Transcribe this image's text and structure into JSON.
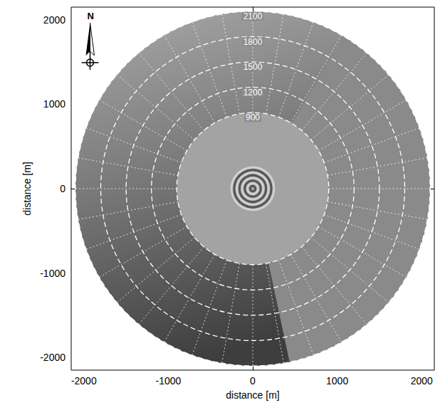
{
  "chart_data": {
    "type": "polar_image",
    "xlabel": "distance [m]",
    "ylabel": "distance [m]",
    "xlim": [
      -2150,
      2150
    ],
    "ylim": [
      -2150,
      2150
    ],
    "xticks": [
      -2000,
      -1000,
      0,
      1000,
      2000
    ],
    "yticks": [
      -2000,
      -1000,
      0,
      1000,
      2000
    ],
    "rings": [
      900,
      1200,
      1500,
      1800,
      2100
    ],
    "flat_sector_azimuth": [
      31,
      168
    ],
    "north_label": "N"
  }
}
